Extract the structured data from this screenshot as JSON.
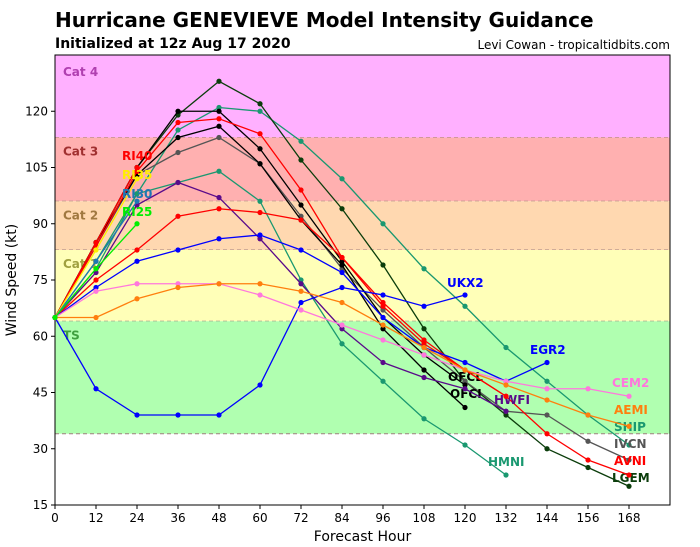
{
  "chart_data": {
    "type": "line",
    "title": "Hurricane GENEVIEVE Model Intensity Guidance",
    "subtitle": "Initialized at 12z Aug 17 2020",
    "credit": "Levi Cowan - tropicaltidbits.com",
    "xlabel": "Forecast Hour",
    "ylabel": "Wind Speed (kt)",
    "xlim": [
      0,
      180
    ],
    "ylim": [
      15,
      135
    ],
    "xticks": [
      0,
      12,
      24,
      36,
      48,
      60,
      72,
      84,
      96,
      108,
      120,
      132,
      144,
      156,
      168
    ],
    "yticks": [
      15,
      30,
      45,
      60,
      75,
      90,
      105,
      120
    ],
    "grid": false,
    "bands": [
      {
        "name": "Cat 4",
        "from": 113,
        "to": 135,
        "color": "#ffb0ff",
        "label_color": "#b040b0"
      },
      {
        "name": "Cat 3",
        "from": 96,
        "to": 113,
        "color": "#ffb0b0",
        "label_color": "#a03030"
      },
      {
        "name": "Cat 2",
        "from": 83,
        "to": 96,
        "color": "#ffd8b0",
        "label_color": "#a07840"
      },
      {
        "name": "Cat 1",
        "from": 64,
        "to": 83,
        "color": "#ffffb8",
        "label_color": "#a0a040"
      },
      {
        "name": "TS",
        "from": 34,
        "to": 64,
        "color": "#b0ffb0",
        "label_color": "#40a040"
      }
    ],
    "series": [
      {
        "name": "SHIP",
        "color": "#1a9870",
        "values": [
          65,
          80,
          98,
          115,
          121,
          120,
          112,
          102,
          90,
          78,
          68,
          57,
          48,
          39,
          31
        ]
      },
      {
        "name": "HMNI",
        "color": "#1a9870",
        "values": [
          65,
          78,
          98,
          101,
          104,
          96,
          75,
          58,
          48,
          38,
          31,
          23
        ]
      },
      {
        "name": "LGEM",
        "color": "#0b3d0b",
        "values": [
          65,
          85,
          105,
          119,
          128,
          122,
          107,
          94,
          79,
          62,
          48,
          39,
          30,
          25,
          20
        ]
      },
      {
        "name": "IVCN",
        "color": "#555555",
        "values": [
          65,
          84,
          103,
          109,
          113,
          106,
          92,
          78,
          67,
          57,
          48,
          40,
          39,
          32,
          27
        ]
      },
      {
        "name": "OFCL",
        "color": "#000000",
        "values": [
          65,
          85,
          105,
          120,
          120,
          110,
          95,
          80,
          65,
          55,
          47
        ]
      },
      {
        "name": "OFCI",
        "color": "#000000",
        "values": [
          65,
          85,
          103,
          113,
          116,
          106,
          91,
          79,
          62,
          51,
          41
        ]
      },
      {
        "name": "AVNI",
        "color": "#ff0000",
        "values": [
          65,
          84,
          104,
          117,
          118,
          114,
          99,
          81,
          69,
          59,
          51,
          44,
          34,
          27,
          23
        ]
      },
      {
        "name": "HWFI",
        "color": "#5a0a8a",
        "values": [
          65,
          77,
          95,
          101,
          97,
          86,
          74,
          62,
          53,
          49,
          46,
          40
        ]
      },
      {
        "name": "DSHP",
        "color": "#ff0000",
        "values": [
          65,
          75,
          83,
          92,
          94,
          93,
          91,
          81,
          68,
          58,
          51,
          44
        ]
      },
      {
        "name": "EGR2",
        "color": "#0000ff",
        "values": [
          65,
          73,
          80,
          83,
          86,
          87,
          83,
          77,
          65,
          57,
          53,
          48,
          53
        ]
      },
      {
        "name": "UKX2",
        "color": "#0000ff",
        "values": [
          65,
          46,
          39,
          39,
          39,
          47,
          69,
          73,
          71,
          68,
          71
        ]
      },
      {
        "name": "CEM2",
        "color": "#ff77dd",
        "values": [
          65,
          72,
          74,
          74,
          74,
          71,
          67,
          63,
          59,
          55,
          51,
          48,
          46,
          46,
          44
        ]
      },
      {
        "name": "AEMI",
        "color": "#ff7f0e",
        "values": [
          65,
          65,
          70,
          73,
          74,
          74,
          72,
          69,
          63,
          57,
          51,
          47,
          43,
          39,
          36
        ]
      },
      {
        "name": "RI40",
        "color": "#ff0000",
        "values": [
          65,
          85,
          105
        ]
      },
      {
        "name": "RI35",
        "color": "#ffee00",
        "values": [
          65,
          83,
          102
        ]
      },
      {
        "name": "RI30",
        "color": "#1f77b4",
        "values": [
          65,
          80,
          96
        ]
      },
      {
        "name": "RI25",
        "color": "#00ee00",
        "values": [
          65,
          78,
          90
        ]
      }
    ]
  }
}
